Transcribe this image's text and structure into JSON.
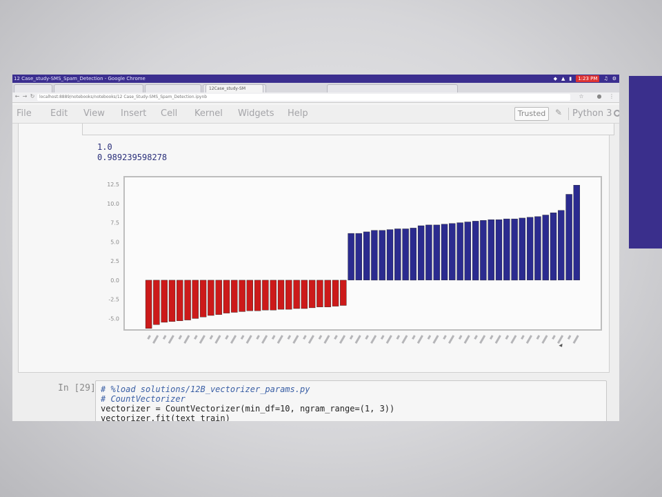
{
  "window": {
    "title": "12 Case_study-SMS_Spam_Detection - Google Chrome",
    "tray_clock": "1:23 PM"
  },
  "browser": {
    "tabs": [
      "",
      "",
      "",
      "",
      "12Case_study-SM",
      ""
    ],
    "active_tab_index": 4,
    "url": "localhost:8889/notebooks/notebooks/12 Case_Study-SMS_Spam_Detection.ipynb"
  },
  "notebook": {
    "menu": [
      "File",
      "Edit",
      "View",
      "Insert",
      "Cell",
      "Kernel",
      "Widgets",
      "Help"
    ],
    "trusted_label": "Trusted",
    "kernel_name": "Python 3"
  },
  "output": {
    "lines": [
      "1.0",
      "0.989239598278"
    ]
  },
  "chart_data": {
    "type": "bar",
    "negative_color": "#cc1a1a",
    "positive_color": "#2b2b8f",
    "ylim": [
      -6.5,
      13.5
    ],
    "yticks": [
      "12.5",
      "10.0",
      "7.5",
      "5.0",
      "2.5",
      "0.0",
      "-2.5",
      "-5.0"
    ],
    "ytick_values": [
      12.5,
      10.0,
      7.5,
      5.0,
      2.5,
      0.0,
      -2.5,
      -5.0
    ],
    "negative_values": [
      -6.3,
      -5.8,
      -5.5,
      -5.4,
      -5.3,
      -5.2,
      -5.0,
      -4.8,
      -4.6,
      -4.5,
      -4.3,
      -4.2,
      -4.1,
      -4.0,
      -4.0,
      -3.9,
      -3.9,
      -3.8,
      -3.8,
      -3.7,
      -3.7,
      -3.6,
      -3.5,
      -3.5,
      -3.4,
      -3.3
    ],
    "positive_values": [
      6.1,
      6.1,
      6.3,
      6.5,
      6.5,
      6.6,
      6.7,
      6.7,
      6.8,
      7.1,
      7.2,
      7.2,
      7.3,
      7.4,
      7.5,
      7.6,
      7.7,
      7.8,
      7.9,
      7.9,
      8.0,
      8.0,
      8.1,
      8.2,
      8.3,
      8.5,
      8.8,
      9.1,
      11.2,
      12.4
    ]
  },
  "input_cell": {
    "prompt": "In [29]:",
    "lines": [
      {
        "text": "# %load solutions/12B_vectorizer_params.py",
        "comment": true
      },
      {
        "text": "# CountVectorizer",
        "comment": true
      },
      {
        "text": "vectorizer = CountVectorizer(min_df=10, ngram_range=(1, 3))",
        "comment": false
      },
      {
        "text": "vectorizer.fit(text_train)",
        "comment": false
      }
    ]
  }
}
